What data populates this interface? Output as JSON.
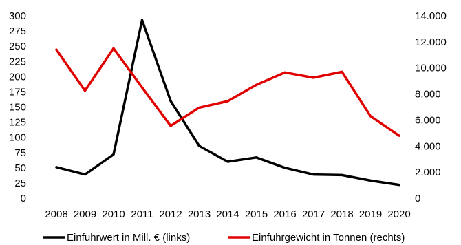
{
  "chart_data": {
    "type": "line",
    "categories": [
      "2008",
      "2009",
      "2010",
      "2011",
      "2012",
      "2013",
      "2014",
      "2015",
      "2016",
      "2017",
      "2018",
      "2019",
      "2020"
    ],
    "y_left": {
      "ylim": [
        0,
        300
      ],
      "ticks": [
        "0",
        "25",
        "50",
        "75",
        "100",
        "125",
        "150",
        "175",
        "200",
        "225",
        "250",
        "275",
        "300"
      ]
    },
    "y_right": {
      "ylim": [
        0,
        14000
      ],
      "ticks": [
        "0",
        "2.000",
        "4.000",
        "6.000",
        "8.000",
        "10.000",
        "12.000",
        "14.000"
      ]
    },
    "series": [
      {
        "name": "Einfuhrwert in Mill. € (links)",
        "axis": "left",
        "color": "#000000",
        "values": [
          51,
          39,
          72,
          293,
          160,
          86,
          60,
          67,
          50,
          39,
          38,
          29,
          22
        ]
      },
      {
        "name": "Einfuhrgewicht in Tonnen (rechts)",
        "axis": "right",
        "color": "#e00000",
        "values": [
          11400,
          8250,
          11500,
          8500,
          5550,
          6950,
          7450,
          8700,
          9650,
          9250,
          9700,
          6300,
          4800
        ]
      }
    ],
    "grid": false,
    "legend_position": "bottom"
  }
}
